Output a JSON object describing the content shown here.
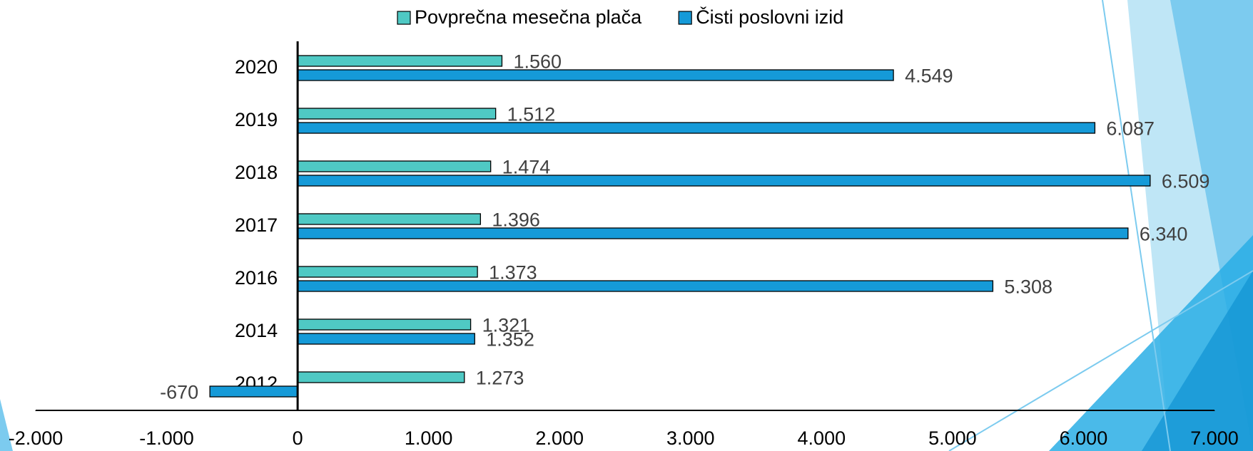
{
  "chart_data": {
    "type": "hbar",
    "categories": [
      "2020",
      "2019",
      "2018",
      "2017",
      "2016",
      "2014",
      "2012"
    ],
    "series": [
      {
        "name": "Povprečna mesečna plača",
        "color": "#4fc9c4",
        "values": [
          1560,
          1512,
          1474,
          1396,
          1373,
          1321,
          1273
        ],
        "value_labels": [
          "1.560",
          "1.512",
          "1.474",
          "1.396",
          "1.373",
          "1.321",
          "1.273"
        ]
      },
      {
        "name": "Čisti poslovni izid",
        "color": "#159ad8",
        "values": [
          4549,
          6087,
          6509,
          6340,
          5308,
          1352,
          -670
        ],
        "value_labels": [
          "4.549",
          "6.087",
          "6.509",
          "6.340",
          "5.308",
          "1.352",
          "-670"
        ]
      }
    ],
    "xlim": [
      -2000,
      7000
    ],
    "xticks": [
      {
        "value": -2000,
        "label": "-2.000"
      },
      {
        "value": -1000,
        "label": "-1.000"
      },
      0,
      {
        "value": 1000,
        "label": "1.000"
      },
      {
        "value": 2000,
        "label": "2.000"
      },
      {
        "value": 3000,
        "label": "3.000"
      },
      {
        "value": 4000,
        "label": "4.000"
      },
      {
        "value": 5000,
        "label": "5.000"
      },
      {
        "value": 6000,
        "label": "6.000"
      },
      {
        "value": 7000,
        "label": "7.000"
      }
    ],
    "legend": "top"
  }
}
